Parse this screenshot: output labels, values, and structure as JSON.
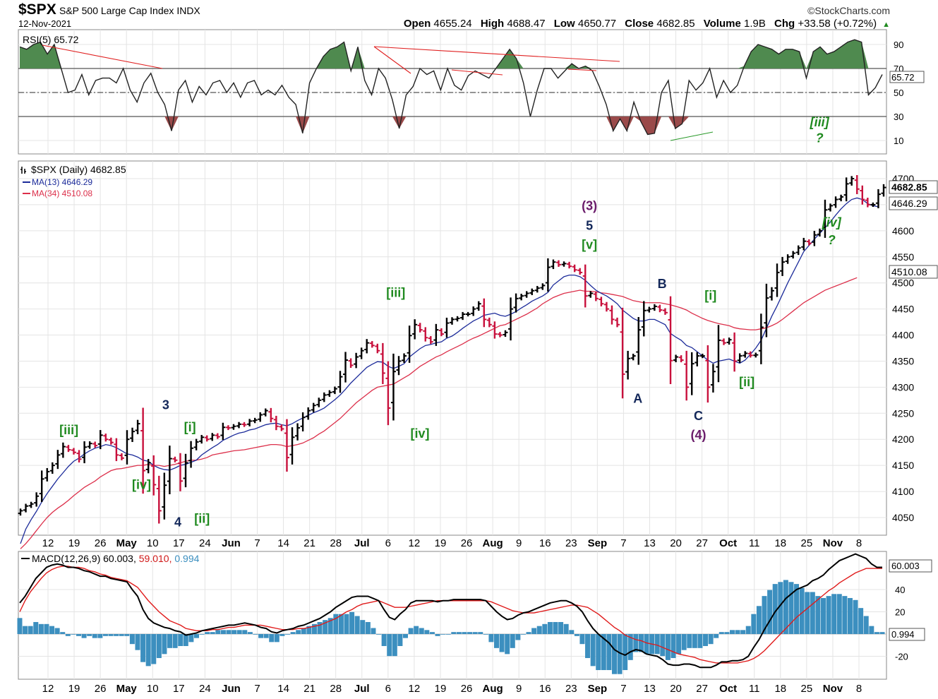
{
  "header": {
    "symbol": "$SPX",
    "name": "S&P 500 Large Cap Index",
    "exchange": "INDX",
    "date": "12-Nov-2021",
    "brand": "©StockCharts.com",
    "open_label": "Open",
    "open": "4655.24",
    "high_label": "High",
    "high": "4688.47",
    "low_label": "Low",
    "low": "4650.77",
    "close_label": "Close",
    "close": "4682.85",
    "volume_label": "Volume",
    "volume": "1.9B",
    "chg_label": "Chg",
    "chg": "+33.58 (+0.72%)",
    "chg_arrow": "▲"
  },
  "colors": {
    "up_bar": "#000000",
    "down_bar": "#c8103c",
    "ma13": "#1c2b9a",
    "ma34": "#dc2f4a",
    "rsi_fill": "#4f8a4f",
    "rsi_low_fill": "#9a4a4a",
    "macd_line": "#000000",
    "macd_signal": "#e01b1b",
    "macd_hist": "#3c8fbf",
    "wave_green": "#1f8a1f",
    "wave_navy": "#14285a",
    "wave_purple": "#6a1b6a"
  },
  "chart_data": [
    {
      "panel": "rsi",
      "type": "line",
      "title": "RSI(5)",
      "value": "65.72",
      "value_label": "65.72",
      "ylim": [
        0,
        100
      ],
      "yticks": [
        10,
        30,
        50,
        70,
        90
      ],
      "reference_lines": [
        30,
        50,
        70
      ],
      "values": [
        88,
        86,
        90,
        92,
        82,
        90,
        70,
        50,
        52,
        65,
        48,
        60,
        62,
        62,
        58,
        70,
        52,
        42,
        58,
        66,
        50,
        40,
        18,
        52,
        60,
        42,
        55,
        48,
        58,
        60,
        50,
        58,
        46,
        58,
        60,
        48,
        52,
        48,
        56,
        46,
        40,
        16,
        58,
        70,
        80,
        86,
        88,
        92,
        68,
        88,
        60,
        48,
        70,
        62,
        44,
        20,
        48,
        55,
        70,
        65,
        68,
        52,
        70,
        56,
        52,
        64,
        68,
        65,
        62,
        70,
        78,
        86,
        78,
        58,
        30,
        52,
        70,
        70,
        62,
        68,
        74,
        70,
        72,
        68,
        55,
        40,
        18,
        28,
        18,
        42,
        26,
        15,
        16,
        50,
        60,
        20,
        24,
        60,
        52,
        58,
        70,
        46,
        60,
        50,
        56,
        72,
        84,
        90,
        88,
        86,
        82,
        86,
        86,
        84,
        62,
        84,
        88,
        82,
        84,
        88,
        92,
        94,
        92,
        48,
        54,
        65
      ]
    },
    {
      "panel": "price",
      "type": "ohlc",
      "title": "$SPX (Daily)",
      "title_value": "4682.85",
      "legend": [
        {
          "name": "MA(13)",
          "value": "4646.29"
        },
        {
          "name": "MA(34)",
          "value": "4510.08"
        }
      ],
      "ylim": [
        4020,
        4740
      ],
      "yticks": [
        4050,
        4100,
        4150,
        4200,
        4250,
        4300,
        4350,
        4400,
        4450,
        4500,
        4550,
        4600,
        4650,
        4700
      ],
      "last_price_label": "4682.85",
      "ma13_label": "4646.29",
      "ma34_label": "4510.08",
      "x_tick_labels": [
        "12",
        "19",
        "26",
        "May",
        "10",
        "17",
        "24",
        "Jun",
        "7",
        "14",
        "21",
        "28",
        "Jul",
        "6",
        "12",
        "19",
        "26",
        "Aug",
        "9",
        "16",
        "23",
        "Sep",
        "7",
        "13",
        "20",
        "27",
        "Oct",
        "11",
        "18",
        "25",
        "Nov",
        "8"
      ],
      "closes": [
        4063,
        4072,
        4076,
        4091,
        4124,
        4138,
        4150,
        4170,
        4186,
        4180,
        4175,
        4162,
        4185,
        4192,
        4188,
        4208,
        4200,
        4194,
        4170,
        4164,
        4200,
        4215,
        4230,
        4140,
        4155,
        4113,
        4063,
        4112,
        4163,
        4160,
        4120,
        4155,
        4183,
        4195,
        4204,
        4200,
        4208,
        4205,
        4223,
        4222,
        4225,
        4229,
        4228,
        4235,
        4237,
        4247,
        4255,
        4240,
        4225,
        4220,
        4165,
        4204,
        4222,
        4242,
        4255,
        4265,
        4275,
        4285,
        4290,
        4297,
        4320,
        4352,
        4342,
        4358,
        4370,
        4385,
        4380,
        4370,
        4327,
        4260,
        4330,
        4350,
        4360,
        4399,
        4420,
        4410,
        4395,
        4387,
        4410,
        4402,
        4423,
        4430,
        4432,
        4440,
        4440,
        4450,
        4460,
        4430,
        4420,
        4402,
        4400,
        4405,
        4450,
        4470,
        4475,
        4480,
        4485,
        4490,
        4495,
        4530,
        4540,
        4535,
        4537,
        4532,
        4525,
        4520,
        4475,
        4480,
        4470,
        4460,
        4450,
        4430,
        4420,
        4325,
        4355,
        4360,
        4410,
        4447,
        4450,
        4455,
        4448,
        4443,
        4351,
        4358,
        4352,
        4300,
        4345,
        4360,
        4360,
        4300,
        4330,
        4390,
        4385,
        4391,
        4350,
        4360,
        4365,
        4361,
        4362,
        4415,
        4471,
        4485,
        4520,
        4540,
        4550,
        4557,
        4567,
        4580,
        4576,
        4592,
        4600,
        4640,
        4648,
        4660,
        4665,
        4690,
        4700,
        4680,
        4660,
        4650,
        4650,
        4670,
        4683
      ],
      "ma13": [
        4000,
        4028,
        4046,
        4062,
        4080,
        4096,
        4110,
        4124,
        4136,
        4148,
        4158,
        4164,
        4172,
        4178,
        4183,
        4186,
        4190,
        4188,
        4184,
        4178,
        4172,
        4170,
        4166,
        4160,
        4158,
        4150,
        4145,
        4142,
        4141,
        4145,
        4150,
        4152,
        4156,
        4160,
        4170,
        4177,
        4184,
        4190,
        4198,
        4203,
        4208,
        4212,
        4214,
        4218,
        4220,
        4224,
        4228,
        4230,
        4231,
        4228,
        4226,
        4230,
        4236,
        4241,
        4246,
        4251,
        4255,
        4260,
        4268,
        4276,
        4285,
        4296,
        4308,
        4318,
        4328,
        4338,
        4344,
        4349,
        4348,
        4340,
        4336,
        4340,
        4345,
        4358,
        4366,
        4374,
        4380,
        4382,
        4385,
        4387,
        4394,
        4398,
        4405,
        4413,
        4420,
        4427,
        4432,
        4438,
        4440,
        4442,
        4438,
        4436,
        4440,
        4445,
        4452,
        4458,
        4465,
        4470,
        4475,
        4482,
        4496,
        4504,
        4512,
        4515,
        4515,
        4512,
        4505,
        4495,
        4486,
        4480,
        4475,
        4468,
        4460,
        4448,
        4440,
        4432,
        4427,
        4427,
        4430,
        4430,
        4425,
        4420,
        4403,
        4396,
        4390,
        4380,
        4376,
        4368,
        4360,
        4352,
        4346,
        4350,
        4352,
        4354,
        4350,
        4346,
        4352,
        4363,
        4375,
        4390,
        4413,
        4436,
        4456,
        4478,
        4500,
        4520,
        4540,
        4560,
        4572,
        4584,
        4595,
        4606,
        4617,
        4630,
        4642,
        4652,
        4660,
        4663,
        4660,
        4652,
        4648,
        4646
      ],
      "ma34": [
        3990,
        4000,
        4012,
        4025,
        4038,
        4050,
        4060,
        4068,
        4075,
        4083,
        4092,
        4100,
        4108,
        4114,
        4120,
        4128,
        4134,
        4140,
        4143,
        4144,
        4146,
        4148,
        4150,
        4150,
        4152,
        4150,
        4150,
        4148,
        4150,
        4152,
        4155,
        4158,
        4160,
        4160,
        4162,
        4165,
        4170,
        4172,
        4174,
        4176,
        4178,
        4179,
        4180,
        4182,
        4184,
        4186,
        4188,
        4190,
        4190,
        4189,
        4186,
        4188,
        4190,
        4193,
        4198,
        4203,
        4210,
        4216,
        4224,
        4232,
        4240,
        4250,
        4260,
        4270,
        4278,
        4286,
        4294,
        4300,
        4302,
        4304,
        4306,
        4312,
        4318,
        4324,
        4332,
        4340,
        4346,
        4352,
        4358,
        4362,
        4368,
        4373,
        4378,
        4383,
        4389,
        4394,
        4398,
        4403,
        4408,
        4413,
        4418,
        4420,
        4425,
        4430,
        4435,
        4440,
        4446,
        4452,
        4460,
        4466,
        4472,
        4476,
        4480,
        4482,
        4484,
        4486,
        4484,
        4484,
        4483,
        4481,
        4480,
        4478,
        4476,
        4474,
        4470,
        4466,
        4464,
        4462,
        4462,
        4462,
        4462,
        4460,
        4458,
        4455,
        4452,
        4448,
        4442,
        4437,
        4432,
        4428,
        4425,
        4422,
        4420,
        4418,
        4414,
        4412,
        4411,
        4410,
        4410,
        4412,
        4414,
        4418,
        4423,
        4430,
        4438,
        4446,
        4454,
        4462,
        4468,
        4474,
        4480,
        4486,
        4490,
        4494,
        4498,
        4502,
        4506,
        4510
      ]
    },
    {
      "panel": "macd",
      "type": "line",
      "title": "MACD(12,26,9)",
      "macd_value": "60.003",
      "signal_value": "59.010",
      "hist_value": "0.994",
      "ylim": [
        -35,
        75
      ],
      "yticks": [
        -20,
        20,
        40
      ],
      "macd_label": "60.003",
      "hist_label": "0.994",
      "macd": [
        28,
        34,
        42,
        50,
        55,
        60,
        62,
        63,
        62,
        60,
        60,
        59,
        57,
        56,
        54,
        52,
        52,
        50,
        49,
        48,
        47,
        40,
        34,
        22,
        14,
        10,
        8,
        6,
        5,
        3,
        2,
        -1,
        0,
        1,
        3,
        4,
        5,
        6,
        7,
        8,
        8,
        9,
        10,
        9,
        8,
        6,
        5,
        2,
        1,
        3,
        4,
        5,
        7,
        8,
        10,
        12,
        14,
        17,
        20,
        24,
        27,
        30,
        33,
        34,
        34,
        34,
        32,
        30,
        22,
        15,
        13,
        18,
        22,
        28,
        30,
        30,
        30,
        30,
        29,
        30,
        30,
        31,
        31,
        31,
        31,
        31,
        31,
        30,
        25,
        20,
        16,
        13,
        14,
        17,
        19,
        20,
        22,
        24,
        26,
        28,
        29,
        30,
        30,
        28,
        25,
        20,
        12,
        5,
        0,
        -4,
        -8,
        -14,
        -17,
        -19,
        -16,
        -14,
        -15,
        -18,
        -19,
        -20,
        -23,
        -27,
        -28,
        -28,
        -27,
        -27,
        -28,
        -30,
        -30,
        -30,
        -28,
        -25,
        -25,
        -24,
        -24,
        -23,
        -20,
        -12,
        -5,
        4,
        12,
        20,
        26,
        32,
        36,
        40,
        42,
        44,
        48,
        50,
        53,
        58,
        62,
        66,
        68,
        70,
        72,
        70,
        68,
        63,
        60,
        60
      ],
      "signal": [
        20,
        30,
        38,
        44,
        50,
        55,
        58,
        60,
        61,
        61,
        60,
        60,
        59,
        57,
        56,
        54,
        53,
        51,
        50,
        49,
        48,
        45,
        42,
        36,
        30,
        25,
        20,
        16,
        12,
        10,
        8,
        5,
        4,
        3,
        3,
        3,
        4,
        4,
        5,
        6,
        6,
        7,
        8,
        8,
        8,
        8,
        7,
        6,
        5,
        4,
        4,
        4,
        5,
        5,
        6,
        7,
        8,
        10,
        12,
        14,
        17,
        20,
        22,
        25,
        27,
        28,
        29,
        30,
        28,
        26,
        24,
        24,
        24,
        25,
        26,
        27,
        28,
        29,
        30,
        30,
        30,
        30,
        30,
        30,
        30,
        30,
        30,
        30,
        29,
        27,
        25,
        23,
        21,
        20,
        19,
        19,
        19,
        20,
        21,
        22,
        23,
        24,
        25,
        26,
        26,
        25,
        24,
        21,
        18,
        14,
        10,
        6,
        3,
        -1,
        -3,
        -5,
        -6,
        -8,
        -9,
        -10,
        -12,
        -14,
        -16,
        -18,
        -19,
        -20,
        -21,
        -23,
        -24,
        -25,
        -26,
        -26,
        -26,
        -26,
        -26,
        -25,
        -24,
        -22,
        -19,
        -15,
        -10,
        -5,
        0,
        5,
        10,
        15,
        19,
        23,
        27,
        31,
        35,
        39,
        42,
        46,
        49,
        52,
        55,
        57,
        59,
        59,
        59,
        59
      ]
    }
  ],
  "wave_labels": [
    {
      "text": "[iii]",
      "color": "green",
      "x": 4,
      "price": 4210
    },
    {
      "text": "[iv]",
      "color": "green",
      "x": 10,
      "price": 4105
    },
    {
      "text": "3",
      "color": "navy",
      "x": 12,
      "price": 4258
    },
    {
      "text": "[i]",
      "color": "green",
      "x": 14,
      "price": 4215
    },
    {
      "text": "4",
      "color": "navy",
      "x": 13,
      "price": 4033
    },
    {
      "text": "[ii]",
      "color": "green",
      "x": 15,
      "price": 4040
    },
    {
      "text": "[iii]",
      "color": "green",
      "x": 31,
      "price": 4473
    },
    {
      "text": "[iv]",
      "color": "green",
      "x": 33,
      "price": 4203
    },
    {
      "text": "(3)",
      "color": "purple",
      "x": 47,
      "price": 4640
    },
    {
      "text": "5",
      "color": "navy",
      "x": 47,
      "price": 4602
    },
    {
      "text": "[v]",
      "color": "green",
      "x": 47,
      "price": 4565
    },
    {
      "text": "A",
      "color": "navy",
      "x": 51,
      "price": 4270
    },
    {
      "text": "B",
      "color": "navy",
      "x": 53,
      "price": 4490
    },
    {
      "text": "[i]",
      "color": "green",
      "x": 57,
      "price": 4468
    },
    {
      "text": "C",
      "color": "navy",
      "x": 56,
      "price": 4237
    },
    {
      "text": "(4)",
      "color": "purple",
      "x": 56,
      "price": 4200
    },
    {
      "text": "[ii]",
      "color": "green",
      "x": 60,
      "price": 4302
    },
    {
      "text": "[iii]",
      "color": "green",
      "x": 66,
      "price": 4800
    },
    {
      "text": "?",
      "color": "green",
      "x": 66,
      "price": 4770
    },
    {
      "text": "[iv]",
      "color": "green",
      "x": 67,
      "price": 4608
    },
    {
      "text": "?",
      "color": "green",
      "x": 67,
      "price": 4574
    }
  ]
}
